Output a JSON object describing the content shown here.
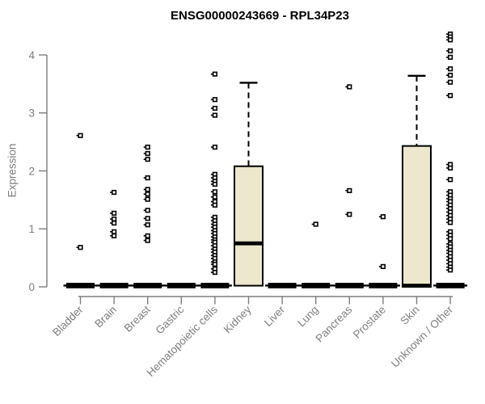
{
  "title": "ENSG00000243669 - RPL34P23",
  "colors": {
    "background": "#ffffff",
    "axis": "#7e7e7e",
    "data": "#000000",
    "box_fill": "#ece7cd",
    "point_fill": "#ffffff"
  },
  "chart_data": {
    "type": "boxplot",
    "title": "ENSG00000243669 - RPL34P23",
    "xlabel": "",
    "ylabel": "Expression",
    "ylim": [
      0,
      4.4
    ],
    "yticks": [
      0,
      1,
      2,
      3,
      4
    ],
    "grid": "off",
    "legend": "none",
    "categories": [
      "Bladder",
      "Brain",
      "Breast",
      "Gastric",
      "Hematopoietic cells",
      "Kidney",
      "Liver",
      "Lung",
      "Pancreas",
      "Prostate",
      "Skin",
      "Unknown / Other"
    ],
    "groups": [
      {
        "label": "Bladder",
        "zero_bar": true,
        "box": null,
        "points": [
          2.61,
          0.68
        ]
      },
      {
        "label": "Brain",
        "zero_bar": true,
        "box": null,
        "points": [
          1.63,
          1.27,
          1.17,
          1.1,
          0.95,
          0.88
        ]
      },
      {
        "label": "Breast",
        "zero_bar": true,
        "box": null,
        "points": [
          2.41,
          2.3,
          2.2,
          1.88,
          1.68,
          1.6,
          1.51,
          1.32,
          1.18,
          1.07,
          0.88,
          0.8
        ]
      },
      {
        "label": "Gastric",
        "zero_bar": true,
        "box": null,
        "points": []
      },
      {
        "label": "Hematopoietic cells",
        "zero_bar": true,
        "box": null,
        "points": [
          3.67,
          3.23,
          3.08,
          2.96,
          2.41,
          1.94,
          1.88,
          1.82,
          1.77,
          1.64,
          1.55,
          1.47,
          1.41,
          1.2,
          1.14,
          1.08,
          1.03,
          0.97,
          0.92,
          0.86,
          0.81,
          0.77,
          0.71,
          0.65,
          0.6,
          0.54,
          0.49,
          0.43,
          0.39,
          0.31,
          0.25
        ]
      },
      {
        "label": "Kidney",
        "zero_bar": false,
        "box": {
          "low": 0.02,
          "q1": 0.02,
          "median": 0.75,
          "q3": 2.08,
          "high": 3.52
        },
        "points": []
      },
      {
        "label": "Liver",
        "zero_bar": true,
        "box": null,
        "points": []
      },
      {
        "label": "Lung",
        "zero_bar": true,
        "box": null,
        "points": [
          1.08
        ]
      },
      {
        "label": "Pancreas",
        "zero_bar": true,
        "box": null,
        "points": [
          3.45,
          1.66,
          1.25
        ]
      },
      {
        "label": "Prostate",
        "zero_bar": true,
        "box": null,
        "points": [
          1.21,
          0.35
        ]
      },
      {
        "label": "Skin",
        "zero_bar": false,
        "box": {
          "low": 0.0,
          "q1": 0.0,
          "median": 0.02,
          "q3": 2.43,
          "high": 3.64
        },
        "points": []
      },
      {
        "label": "Unknown / Other",
        "zero_bar": true,
        "box": null,
        "points": [
          4.36,
          4.31,
          4.26,
          4.07,
          3.96,
          3.76,
          3.65,
          3.53,
          3.3,
          2.11,
          2.05,
          1.85,
          1.64,
          1.58,
          1.52,
          1.47,
          1.41,
          1.35,
          1.29,
          1.23,
          1.17,
          1.11,
          0.95,
          0.89,
          0.83,
          0.74,
          0.69,
          0.63,
          0.58,
          0.52,
          0.46,
          0.4,
          0.34,
          0.29
        ]
      }
    ]
  }
}
